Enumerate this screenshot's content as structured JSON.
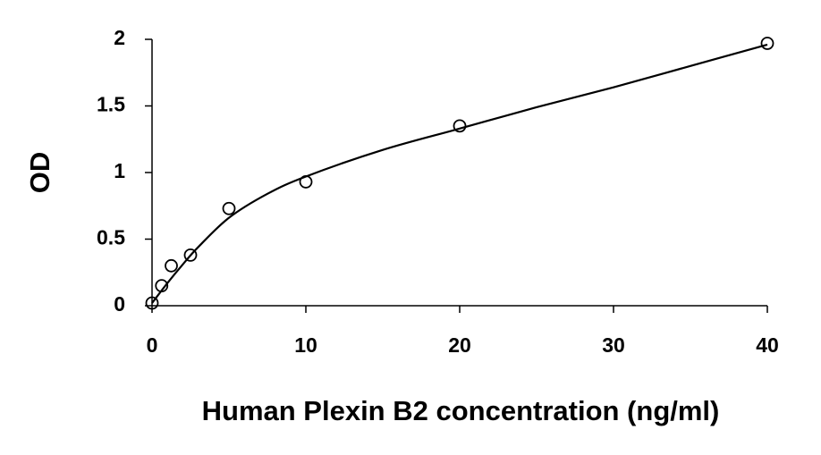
{
  "chart_data": {
    "type": "scatter",
    "xlabel": "Human Plexin B2 concentration (ng/ml)",
    "ylabel": "OD",
    "x": [
      0,
      0.625,
      1.25,
      2.5,
      5,
      10,
      20,
      40
    ],
    "values": [
      0.02,
      0.15,
      0.3,
      0.38,
      0.73,
      0.93,
      1.35,
      1.97
    ],
    "color": "#000000",
    "curve": {
      "x": [
        0,
        1,
        2,
        3,
        5,
        7.5,
        10,
        15,
        20,
        25,
        30,
        35,
        40
      ],
      "values": [
        0.02,
        0.17,
        0.31,
        0.44,
        0.66,
        0.84,
        0.97,
        1.17,
        1.33,
        1.49,
        1.64,
        1.8,
        1.96
      ]
    },
    "xlim": [
      0,
      40
    ],
    "xticks": [
      0,
      10,
      20,
      30,
      40
    ],
    "ylim": [
      0,
      2
    ],
    "yticks": [
      0,
      0.5,
      1,
      1.5,
      2
    ]
  }
}
